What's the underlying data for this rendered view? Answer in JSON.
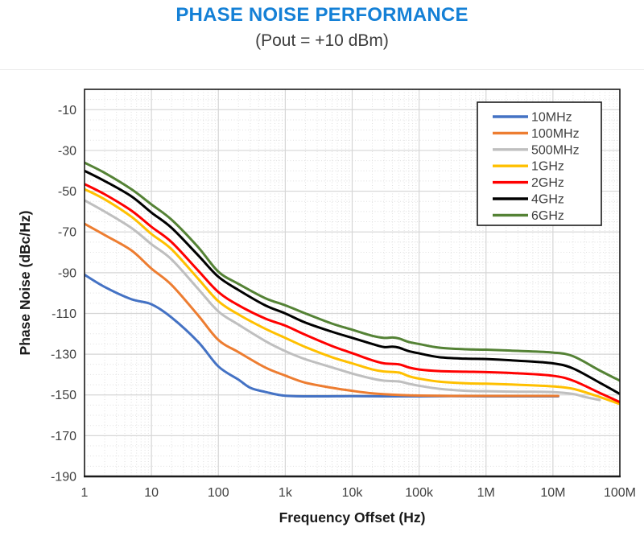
{
  "header": {
    "title": "PHASE NOISE PERFORMANCE",
    "subtitle": "(Pout = +10 dBm)",
    "title_color": "#1480D6",
    "subtitle_color": "#3d3d3d"
  },
  "chart_data": {
    "type": "line",
    "title": "PHASE NOISE PERFORMANCE",
    "subtitle": "(Pout = +10 dBm)",
    "xlabel": "Frequency Offset (Hz)",
    "ylabel": "Phase Noise (dBc/Hz)",
    "x_scale": "log",
    "xlim": [
      1,
      100000000
    ],
    "ylim": [
      -190,
      0
    ],
    "y_ticks": [
      -10,
      -30,
      -50,
      -70,
      -90,
      -110,
      -130,
      -150,
      -170,
      -190
    ],
    "x_ticks": [
      {
        "f": 1,
        "label": "1"
      },
      {
        "f": 10,
        "label": "10"
      },
      {
        "f": 100,
        "label": "100"
      },
      {
        "f": 1000,
        "label": "1k"
      },
      {
        "f": 10000,
        "label": "10k"
      },
      {
        "f": 100000,
        "label": "100k"
      },
      {
        "f": 1000000,
        "label": "1M"
      },
      {
        "f": 10000000,
        "label": "10M"
      },
      {
        "f": 100000000,
        "label": "100M"
      }
    ],
    "grid": {
      "major": true,
      "minor": true,
      "major_color": "#d6d6d6",
      "minor_color": "#e0e0e0"
    },
    "legend_position": "top-right",
    "series": [
      {
        "name": "10MHz",
        "color": "#4472C4",
        "points": [
          [
            1,
            -91
          ],
          [
            2,
            -97
          ],
          [
            5,
            -103
          ],
          [
            10,
            -105.5
          ],
          [
            20,
            -112
          ],
          [
            50,
            -124
          ],
          [
            100,
            -136
          ],
          [
            200,
            -142.5
          ],
          [
            300,
            -146.5
          ],
          [
            500,
            -148.5
          ],
          [
            1000,
            -150.4
          ],
          [
            3000,
            -150.7
          ],
          [
            10000,
            -150.6
          ],
          [
            30000,
            -150.7
          ],
          [
            100000,
            -150.7
          ],
          [
            300000,
            -150.6
          ],
          [
            1000000,
            -150.7
          ],
          [
            3000000,
            -150.7
          ],
          [
            12000000,
            -150.7
          ]
        ]
      },
      {
        "name": "100MHz",
        "color": "#ED7D31",
        "points": [
          [
            1,
            -66
          ],
          [
            2,
            -71.5
          ],
          [
            5,
            -79
          ],
          [
            10,
            -88
          ],
          [
            20,
            -96
          ],
          [
            50,
            -111
          ],
          [
            100,
            -123
          ],
          [
            200,
            -129
          ],
          [
            500,
            -136.5
          ],
          [
            1000,
            -140.5
          ],
          [
            2000,
            -144
          ],
          [
            5000,
            -146.5
          ],
          [
            10000,
            -148
          ],
          [
            20000,
            -149.2
          ],
          [
            50000,
            -150
          ],
          [
            100000,
            -150.3
          ],
          [
            300000,
            -150.5
          ],
          [
            1000000,
            -150.5
          ],
          [
            3000000,
            -150.5
          ],
          [
            12000000,
            -150.5
          ]
        ]
      },
      {
        "name": "500MHz",
        "color": "#BFBFBF",
        "points": [
          [
            1,
            -54.5
          ],
          [
            2,
            -60
          ],
          [
            5,
            -68
          ],
          [
            10,
            -76
          ],
          [
            20,
            -83.5
          ],
          [
            50,
            -98
          ],
          [
            100,
            -109
          ],
          [
            200,
            -115.5
          ],
          [
            500,
            -123.5
          ],
          [
            1000,
            -128.5
          ],
          [
            2000,
            -132.5
          ],
          [
            5000,
            -136.5
          ],
          [
            10000,
            -139.5
          ],
          [
            20000,
            -142
          ],
          [
            30000,
            -143
          ],
          [
            50000,
            -143.4
          ],
          [
            70000,
            -144.5
          ],
          [
            100000,
            -145.5
          ],
          [
            200000,
            -147
          ],
          [
            500000,
            -148
          ],
          [
            1000000,
            -148.2
          ],
          [
            3000000,
            -148.4
          ],
          [
            10000000,
            -148.6
          ],
          [
            20000000,
            -149.5
          ],
          [
            30000000,
            -151
          ],
          [
            50000000,
            -152.5
          ]
        ]
      },
      {
        "name": "1GHz",
        "color": "#FFC000",
        "points": [
          [
            1,
            -49
          ],
          [
            2,
            -54
          ],
          [
            5,
            -62.5
          ],
          [
            10,
            -71
          ],
          [
            20,
            -78.5
          ],
          [
            50,
            -93
          ],
          [
            100,
            -104
          ],
          [
            200,
            -110.5
          ],
          [
            500,
            -117.5
          ],
          [
            1000,
            -122
          ],
          [
            2000,
            -126.5
          ],
          [
            5000,
            -131.5
          ],
          [
            10000,
            -134.5
          ],
          [
            20000,
            -137.5
          ],
          [
            30000,
            -138.5
          ],
          [
            50000,
            -139
          ],
          [
            70000,
            -140.8
          ],
          [
            100000,
            -142
          ],
          [
            200000,
            -143.5
          ],
          [
            500000,
            -144.3
          ],
          [
            1000000,
            -144.5
          ],
          [
            3000000,
            -145
          ],
          [
            10000000,
            -145.8
          ],
          [
            20000000,
            -147
          ],
          [
            50000000,
            -151
          ],
          [
            100000000,
            -154.5
          ]
        ]
      },
      {
        "name": "2GHz",
        "color": "#FF0000",
        "points": [
          [
            1,
            -46.5
          ],
          [
            2,
            -51.5
          ],
          [
            5,
            -59.5
          ],
          [
            10,
            -67.5
          ],
          [
            20,
            -75
          ],
          [
            50,
            -89
          ],
          [
            100,
            -99.5
          ],
          [
            200,
            -106
          ],
          [
            500,
            -112.5
          ],
          [
            1000,
            -116
          ],
          [
            2000,
            -120.5
          ],
          [
            5000,
            -126
          ],
          [
            10000,
            -129.5
          ],
          [
            20000,
            -133
          ],
          [
            30000,
            -134.5
          ],
          [
            50000,
            -135
          ],
          [
            70000,
            -136.5
          ],
          [
            100000,
            -137.5
          ],
          [
            200000,
            -138.3
          ],
          [
            500000,
            -138.6
          ],
          [
            1000000,
            -138.8
          ],
          [
            3000000,
            -139.4
          ],
          [
            10000000,
            -140.6
          ],
          [
            20000000,
            -143
          ],
          [
            50000000,
            -149
          ],
          [
            100000000,
            -153.5
          ]
        ]
      },
      {
        "name": "4GHz",
        "color": "#000000",
        "points": [
          [
            1,
            -40
          ],
          [
            2,
            -45
          ],
          [
            5,
            -52.5
          ],
          [
            10,
            -60.5
          ],
          [
            20,
            -68
          ],
          [
            50,
            -81.5
          ],
          [
            100,
            -92
          ],
          [
            200,
            -98.5
          ],
          [
            500,
            -106
          ],
          [
            1000,
            -110
          ],
          [
            2000,
            -114.5
          ],
          [
            5000,
            -119
          ],
          [
            10000,
            -122
          ],
          [
            20000,
            -125
          ],
          [
            30000,
            -126.5
          ],
          [
            40000,
            -126.3
          ],
          [
            50000,
            -126.8
          ],
          [
            70000,
            -128.5
          ],
          [
            100000,
            -129.6
          ],
          [
            200000,
            -131.5
          ],
          [
            500000,
            -132.2
          ],
          [
            1000000,
            -132.4
          ],
          [
            3000000,
            -133.2
          ],
          [
            10000000,
            -134.5
          ],
          [
            20000000,
            -137
          ],
          [
            50000000,
            -144
          ],
          [
            100000000,
            -149.5
          ]
        ]
      },
      {
        "name": "6GHz",
        "color": "#548235",
        "points": [
          [
            1,
            -36
          ],
          [
            2,
            -41
          ],
          [
            5,
            -49
          ],
          [
            10,
            -56.5
          ],
          [
            20,
            -64
          ],
          [
            50,
            -77.5
          ],
          [
            100,
            -89.5
          ],
          [
            200,
            -95.5
          ],
          [
            500,
            -102.5
          ],
          [
            1000,
            -106
          ],
          [
            2000,
            -110
          ],
          [
            5000,
            -115
          ],
          [
            10000,
            -118
          ],
          [
            20000,
            -121
          ],
          [
            30000,
            -122
          ],
          [
            40000,
            -121.8
          ],
          [
            50000,
            -122.3
          ],
          [
            70000,
            -124
          ],
          [
            100000,
            -125
          ],
          [
            200000,
            -126.8
          ],
          [
            500000,
            -127.6
          ],
          [
            1000000,
            -127.8
          ],
          [
            3000000,
            -128.4
          ],
          [
            10000000,
            -129.2
          ],
          [
            20000000,
            -131
          ],
          [
            50000000,
            -138
          ],
          [
            100000000,
            -143
          ]
        ]
      }
    ]
  }
}
